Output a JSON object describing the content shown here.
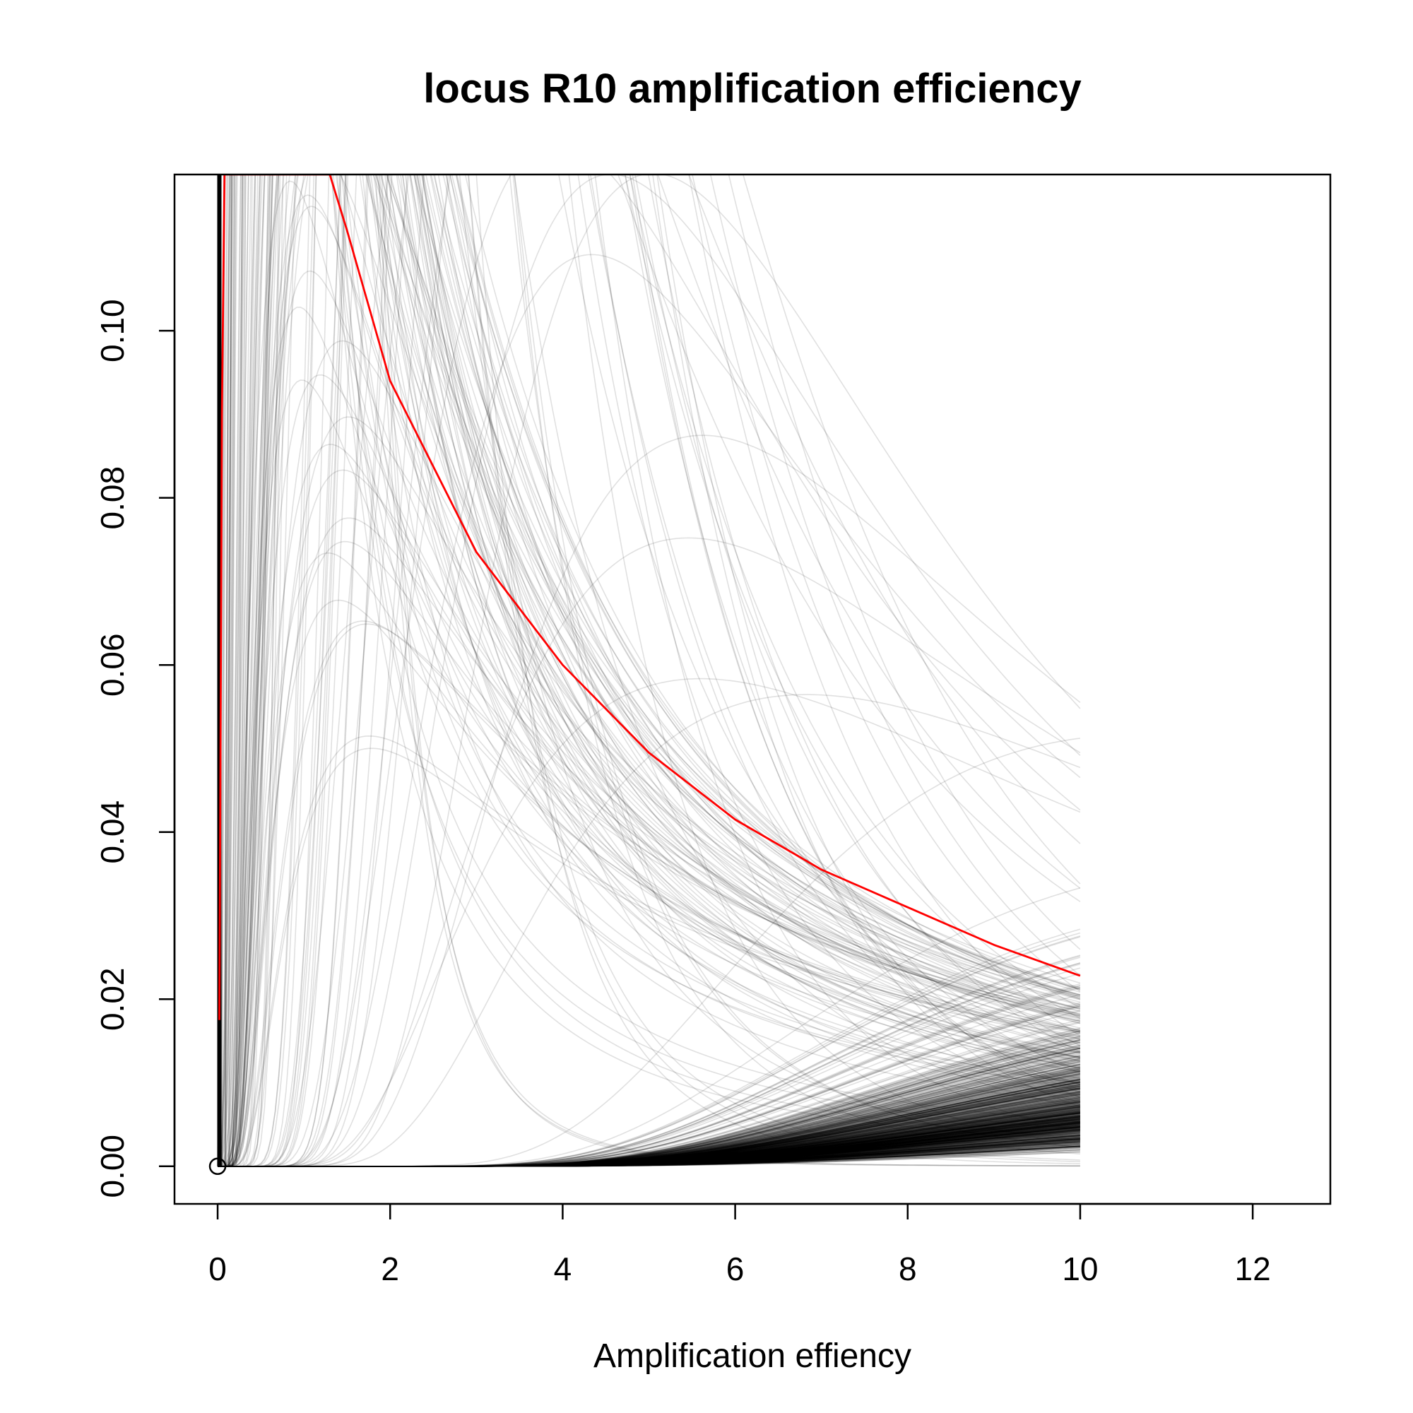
{
  "chart_data": {
    "type": "line",
    "title": "locus R10 amplification efficiency",
    "xlabel": "Amplification effiency",
    "ylabel": "",
    "xlim": [
      -0.5,
      12.9
    ],
    "ylim": [
      -0.0045,
      0.1187
    ],
    "x_ticks": [
      0,
      2,
      4,
      6,
      8,
      10,
      12
    ],
    "x_tick_labels": [
      "0",
      "2",
      "4",
      "6",
      "8",
      "10",
      "12"
    ],
    "y_ticks": [
      0.0,
      0.02,
      0.04,
      0.06,
      0.08,
      0.1
    ],
    "y_tick_labels": [
      "0.00",
      "0.02",
      "0.04",
      "0.06",
      "0.08",
      "0.10"
    ],
    "grid": false,
    "legend": "none",
    "x_domain": [
      0,
      10
    ],
    "series_description": "about 1000 overlaid posterior density curves of an inverse-gamma shape, drawn in semi-transparent black",
    "highlighted_series": {
      "color": "#ff0000",
      "points": [
        [
          0.02,
          0.0175
        ],
        [
          0.05,
          0.09
        ],
        [
          0.08,
          0.1187
        ],
        [
          1.3,
          0.1187
        ],
        [
          1.5,
          0.112
        ],
        [
          2,
          0.094
        ],
        [
          3,
          0.0735
        ],
        [
          4,
          0.06
        ],
        [
          5,
          0.0495
        ],
        [
          6,
          0.0415
        ],
        [
          7,
          0.0355
        ],
        [
          8,
          0.031
        ],
        [
          9,
          0.0265
        ],
        [
          10,
          0.0228
        ]
      ]
    },
    "point_marker": {
      "x": 0,
      "y": 0,
      "shape": "open-circle"
    },
    "colors": {
      "curves": "#000000",
      "highlight": "#ff0000",
      "axes": "#000000"
    }
  }
}
